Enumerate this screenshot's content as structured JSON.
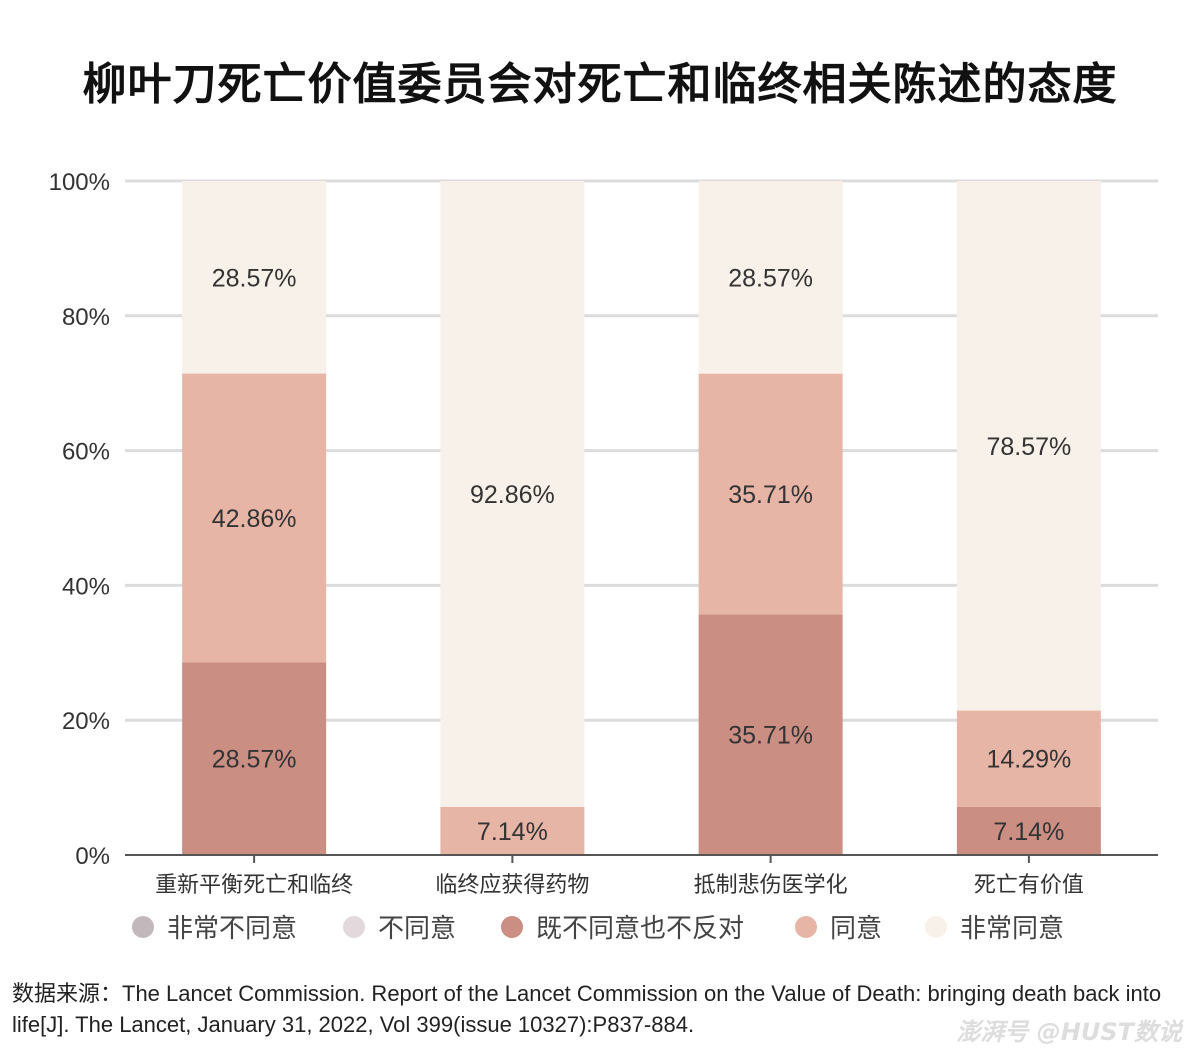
{
  "chart_data": {
    "type": "bar",
    "stacked": true,
    "title": "柳叶刀死亡价值委员会对死亡和临终相关陈述的态度",
    "xlabel": "",
    "ylabel": "",
    "ylim": [
      0,
      100
    ],
    "yticks": [
      "0%",
      "20%",
      "40%",
      "60%",
      "80%",
      "100%"
    ],
    "grid": true,
    "legend_position": "bottom",
    "categories": [
      "重新平衡死亡和临终",
      "临终应获得药物",
      "抵制悲伤医学化",
      "死亡有价值"
    ],
    "series": [
      {
        "name": "非常不同意",
        "color": "#c2b8bc",
        "values": [
          0,
          0,
          0,
          0
        ]
      },
      {
        "name": "不同意",
        "color": "#e3d8dc",
        "values": [
          0,
          0,
          0,
          0
        ]
      },
      {
        "name": "既不同意也不反对",
        "color": "#cb8e82",
        "values": [
          28.57,
          0,
          35.71,
          7.14
        ]
      },
      {
        "name": "同意",
        "color": "#e7b5a6",
        "values": [
          42.86,
          7.14,
          35.71,
          14.29
        ]
      },
      {
        "name": "非常同意",
        "color": "#f8f1ea",
        "values": [
          28.57,
          92.86,
          28.57,
          78.57
        ]
      }
    ]
  },
  "source": "数据来源：The Lancet Commission. Report of the Lancet Commission on the Value of Death: bringing death back into life[J]. The Lancet, January 31, 2022, Vol 399(issue 10327):P837-884.",
  "watermark": "澎湃号 @HUST数说"
}
